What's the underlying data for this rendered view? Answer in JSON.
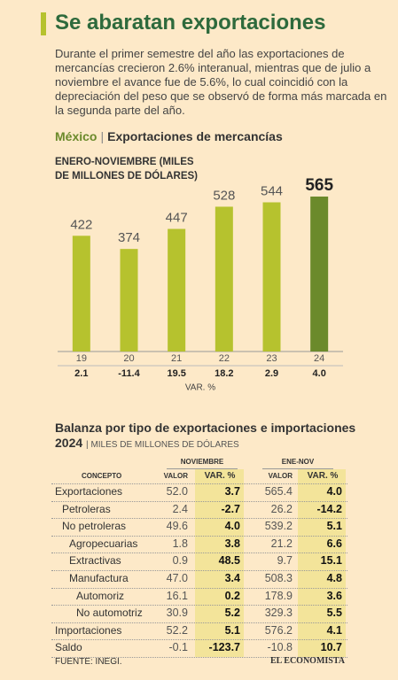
{
  "title": "Se abaratan exportaciones",
  "intro": "Durante el primer semestre del año las exportaciones de mercancías crecieron 2.6% interanual, mientras que de julio a noviembre el avance fue de 5.6%, lo cual coincidió con la depreciación del peso que se observó de forma más marcada en la segunda parte del año.",
  "chart_data": {
    "type": "bar",
    "title": "México",
    "subtitle": "Exportaciones de mercancías",
    "y_label": "ENERO-NOVIEMBRE (MILES DE MILLONES DE DÓLARES)",
    "categories": [
      "19",
      "20",
      "21",
      "22",
      "23",
      "24"
    ],
    "values": [
      422,
      374,
      447,
      528,
      544,
      565
    ],
    "colors": [
      "#b6c22e",
      "#b6c22e",
      "#b6c22e",
      "#b6c22e",
      "#b6c22e",
      "#6b8a2b"
    ],
    "variation_label": "VAR. %",
    "variation": [
      "2.1",
      "-11.4",
      "19.5",
      "18.2",
      "2.9",
      "4.0"
    ]
  },
  "table": {
    "title": "Balanza por tipo de exportaciones e importaciones 2024",
    "unit": "MILES DE MILLONES DE DÓLARES",
    "groups": [
      "NOVIEMBRE",
      "ENE-NOV"
    ],
    "columns": [
      "CONCEPTO",
      "VALOR",
      "VAR. %",
      "VALOR",
      "VAR. %"
    ],
    "rows": [
      [
        "Exportaciones",
        "52.0",
        "3.7",
        "565.4",
        "4.0"
      ],
      [
        "Petroleras",
        "2.4",
        "-2.7",
        "26.2",
        "-14.2"
      ],
      [
        "No petroleras",
        "49.6",
        "4.0",
        "539.2",
        "5.1"
      ],
      [
        "Agropecuarias",
        "1.8",
        "3.8",
        "21.2",
        "6.6"
      ],
      [
        "Extractivas",
        "0.9",
        "48.5",
        "9.7",
        "15.1"
      ],
      [
        "Manufactura",
        "47.0",
        "3.4",
        "508.3",
        "4.8"
      ],
      [
        "Automoriz",
        "16.1",
        "0.2",
        "178.9",
        "3.6"
      ],
      [
        "No automotriz",
        "30.9",
        "5.2",
        "329.3",
        "5.5"
      ],
      [
        "Importaciones",
        "52.2",
        "5.1",
        "576.2",
        "4.1"
      ],
      [
        "Saldo",
        "-0.1",
        "-123.7",
        "-10.8",
        "10.7"
      ]
    ]
  },
  "footer": {
    "source": "FUENTE: INEGI.",
    "brand": "EL ECONOMISTA"
  }
}
